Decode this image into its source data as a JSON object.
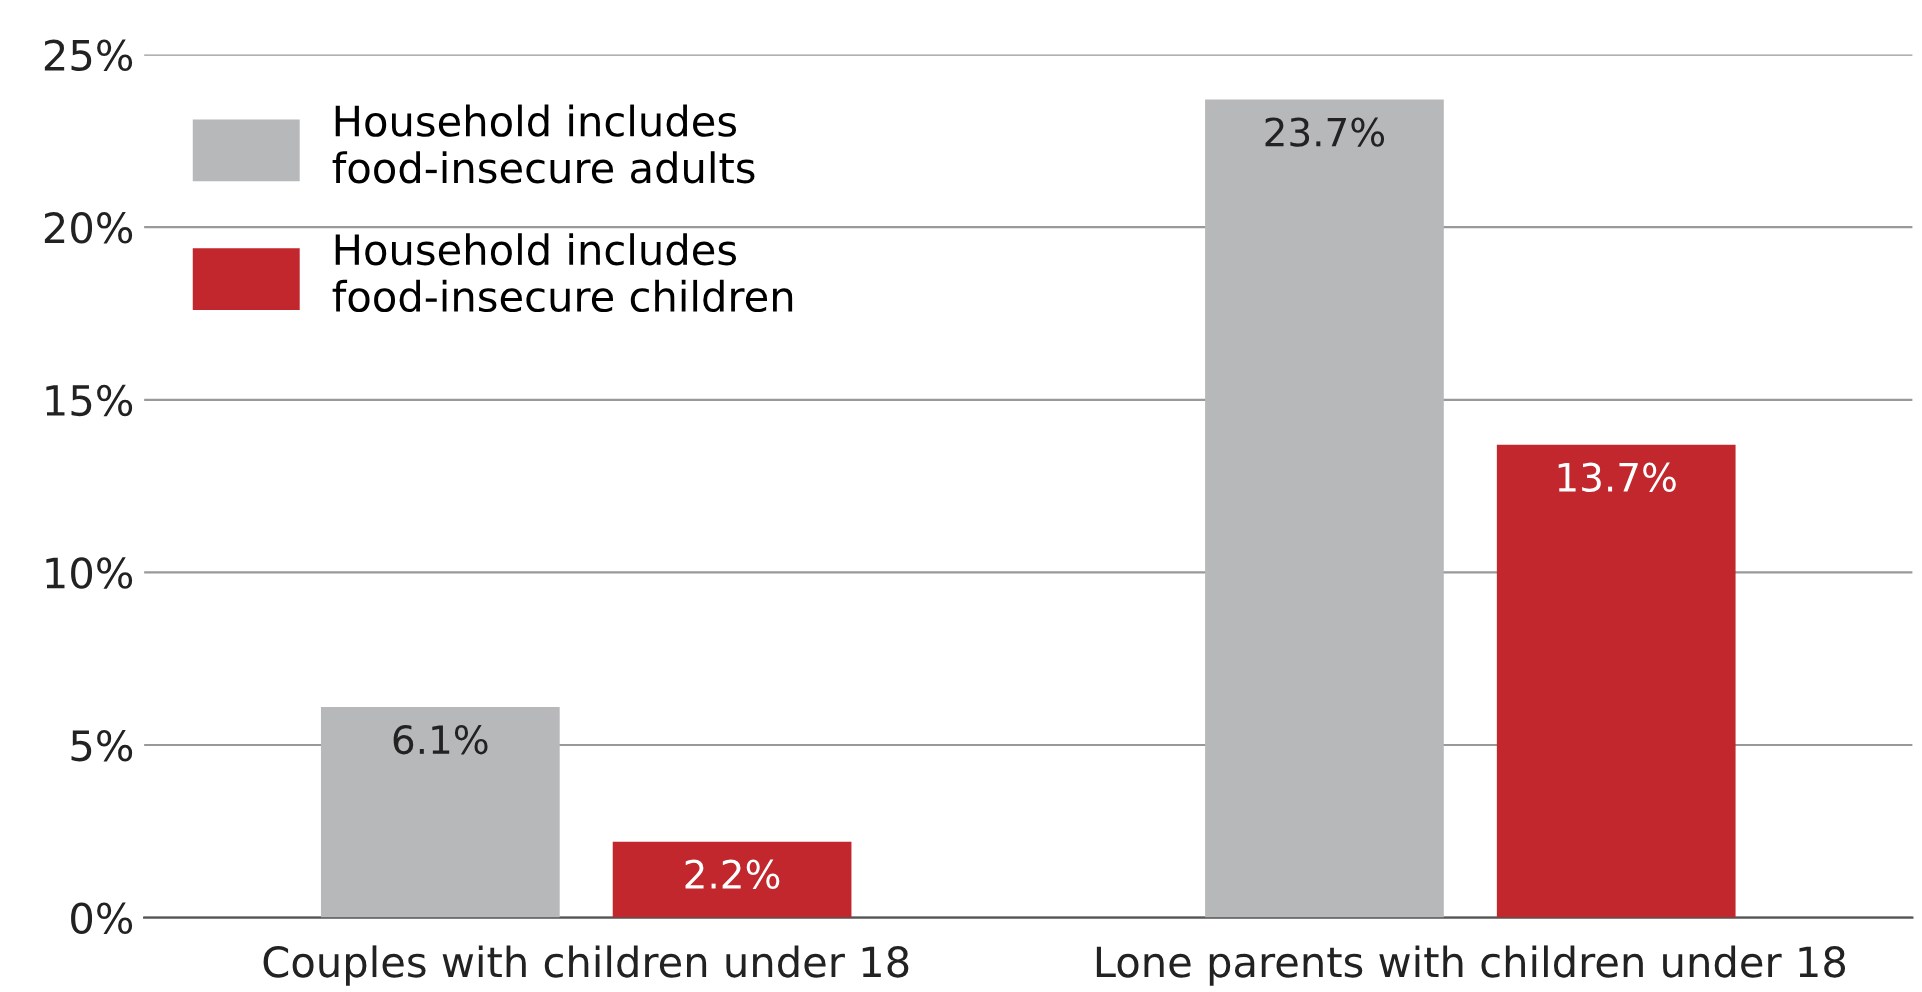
{
  "chart_data": {
    "type": "bar",
    "categories": [
      "Couples with children under 18",
      "Lone parents with children under 18"
    ],
    "series": [
      {
        "name": "Household includes\nfood-insecure adults",
        "color": "#b7b8ba",
        "values": [
          6.1,
          23.7
        ],
        "value_labels": [
          "6.1%",
          "23.7%"
        ]
      },
      {
        "name": "Household includes\nfood-insecure children",
        "color": "#c1272d",
        "values": [
          2.2,
          13.7
        ],
        "value_labels": [
          "2.2%",
          "13.7%"
        ]
      }
    ],
    "ylim": [
      0,
      25
    ],
    "yticks": [
      {
        "value": 0,
        "label": "0%"
      },
      {
        "value": 5,
        "label": "5%"
      },
      {
        "value": 10,
        "label": "10%"
      },
      {
        "value": 15,
        "label": "15%"
      },
      {
        "value": 20,
        "label": "20%"
      },
      {
        "value": 25,
        "label": "25%"
      }
    ],
    "grid": "y",
    "legend": "top left"
  }
}
